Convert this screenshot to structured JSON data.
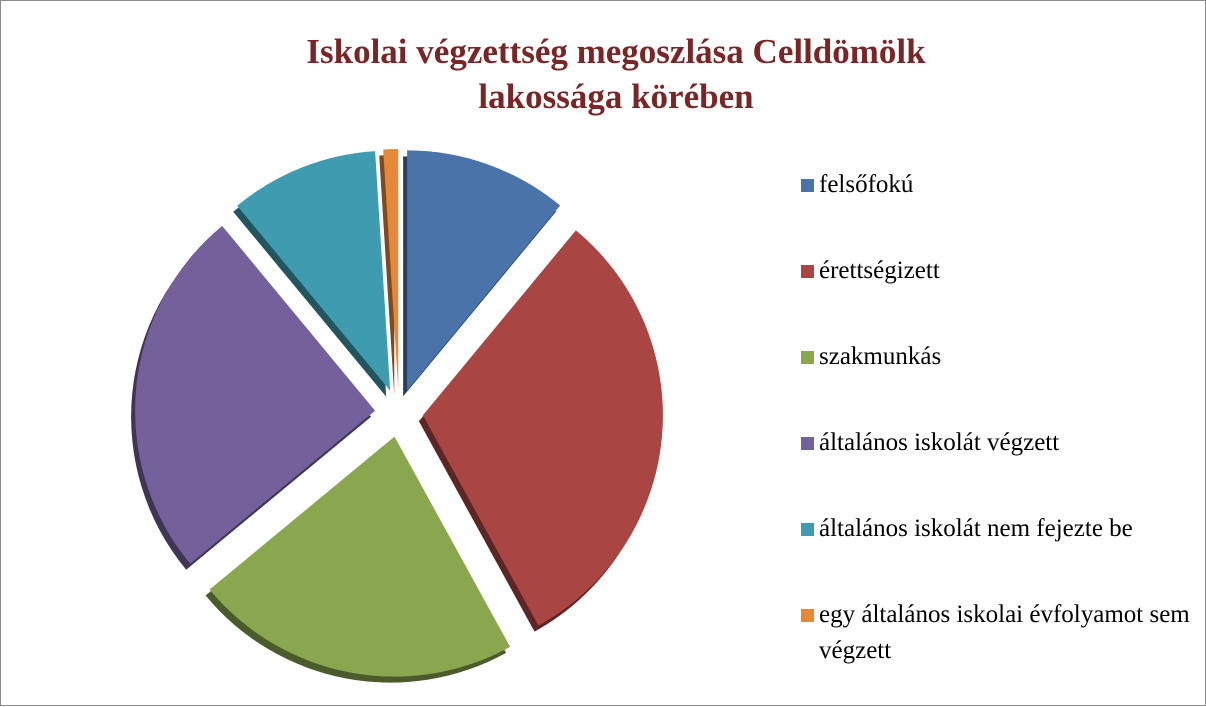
{
  "chart_data": {
    "type": "pie",
    "title": "Iskolai végzettség megoszlása Celldömölk lakossága körében",
    "categories": [
      "felsőfokú",
      "érettségizett",
      "szakmunkás",
      "általános iskolát végzett",
      "általános iskolát nem fejezte be",
      "egy általános iskolai évfolyamot sem végzett"
    ],
    "values": [
      11,
      31,
      22,
      25,
      10,
      1
    ],
    "colors": [
      "#4a73aa",
      "#a94643",
      "#8aa64e",
      "#74609a",
      "#3f9bb0",
      "#e5883a"
    ],
    "legend": "right"
  }
}
